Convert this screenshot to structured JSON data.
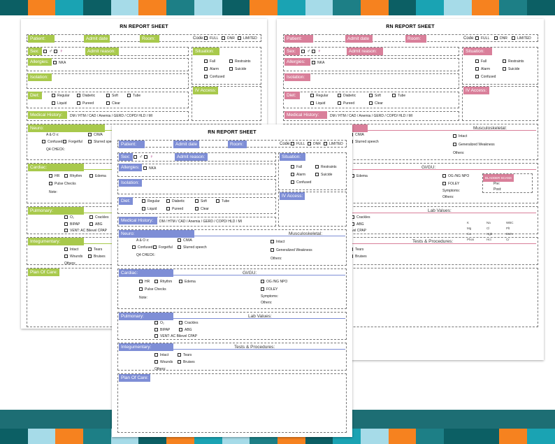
{
  "stripes": [
    "#0c5f64",
    "#f6821f",
    "#1aa3b3",
    "#0c5f64",
    "#a6dbe8",
    "#f6821f",
    "#1d7f86",
    "#a6dbe8",
    "#0c5f64",
    "#f6821f",
    "#1aa3b3",
    "#a6dbe8",
    "#1d7f86",
    "#f6821f",
    "#0c5f64",
    "#1aa3b3",
    "#a6dbe8",
    "#f6821f",
    "#1d7f86",
    "#0c5f64"
  ],
  "title": "RN REPORT SHEET",
  "labels": {
    "patient": "Patient:",
    "admit_date": "Admit date",
    "room": "Room:",
    "code": "Code:",
    "code_full": "FULL",
    "code_dnr": "DNR",
    "code_limited": "LIMITED",
    "sex": "Sex:",
    "admit_reason": "Admit reason:",
    "situation": "Situation:",
    "fall": "Fall",
    "restraints": "Restraints",
    "alarm": "Alarm",
    "suicide": "Suicide",
    "confused": "Confused",
    "allergies": "Allergies:",
    "nka": "NKA",
    "isolation": "Isolation:",
    "iv_access": "IV Access:",
    "diet": "Diet:",
    "regular": "Regular",
    "diabetic": "Diabetic",
    "soft": "Soft",
    "tube": "Tube",
    "liquid": "Liquid",
    "pureed": "Pureed",
    "clear": "Clear",
    "medical_history": "Medical History:",
    "history_list": "DM / HTM / CAD / Anemia / GERD / COPD/ HLD / MI",
    "neuro": "Neuro:",
    "musculoskeletal": "Musculoskeletal:",
    "a_o_x": "A & O x:",
    "ciwa": "CIWA",
    "forgetful": "Forgetful",
    "slurred": "Slurred speech",
    "q4_check": "Q4 CHECK:",
    "intact": "Intact",
    "gen_weakness": "Generalized Weakness",
    "others": "Others:",
    "cardiac": "Cardiac:",
    "gi_gu": "GI/GU:",
    "hr": "HR",
    "rhythm": "Rhythm",
    "edema": "Edema",
    "pulse_checks": "Pulse Checks",
    "note": "Note:",
    "og_ng": "OG /NG NPO",
    "foley": "FOLEY",
    "symptoms": "Symptoms:",
    "bladder_scan": "BLADDER SCANS",
    "pre": "Pre:",
    "post": "Post:",
    "pulmonary": "Pulmonary:",
    "lab_values": "Lab Values:",
    "o2": "O₂",
    "crackles": "Crackles",
    "bipap": "BIPAP",
    "abg": "ABG",
    "vent": "VENT: AC Bilevel CPAP",
    "integumentary": "Integumentary:",
    "tests": "Tests & Procedures:",
    "tears": "Tears",
    "wounds": "Wounds",
    "bruises": "Bruises",
    "plan_of_care": "Plan Of Care:",
    "lab_k": "K",
    "lab_na": "Na",
    "lab_wbc": "WBC",
    "lab_mg": "Mg",
    "lab_cl": "Cl",
    "lab_plt": "Plt",
    "lab_hgb": "Hgb",
    "lab_ca": "Ca",
    "lab_bun": "BUN",
    "lab_phos": "Phos",
    "lab_hct": "Hct",
    "lab_cr": "Cr",
    "male": "♂",
    "female": "♀"
  },
  "themes": {
    "green": "#a8c94c",
    "pink": "#d97f9a",
    "blue": "#7e8ed6"
  }
}
